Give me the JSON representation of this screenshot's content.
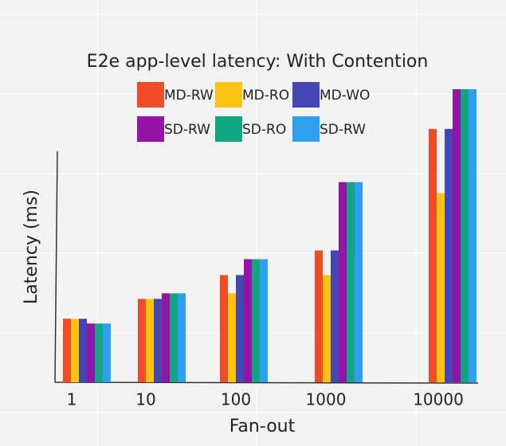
{
  "chart_data": {
    "type": "bar",
    "title": "E2e app-level latency: With Contention",
    "x_label": "Fan-out",
    "y_label": "Latency (ms)",
    "categories": [
      "1",
      "10",
      "100",
      "1000",
      "10000"
    ],
    "ylim": [
      0,
      370
    ],
    "series": [
      {
        "name": "MD-RW",
        "color": "#f24b2a",
        "values": [
          80,
          105,
          135,
          166,
          319
        ]
      },
      {
        "name": "MD-RO",
        "color": "#fcc313",
        "values": [
          80,
          105,
          112,
          135,
          238
        ]
      },
      {
        "name": "MD-WO",
        "color": "#4347b5",
        "values": [
          80,
          105,
          135,
          166,
          319
        ]
      },
      {
        "name": "SD-RW",
        "color": "#9414a7",
        "values": [
          74,
          112,
          155,
          252,
          369
        ]
      },
      {
        "name": "SD-RO",
        "color": "#12a584",
        "values": [
          74,
          112,
          155,
          252,
          369
        ]
      },
      {
        "name": "SD-RW",
        "color": "#2e9ef0",
        "values": [
          74,
          112,
          155,
          252,
          369
        ]
      }
    ]
  }
}
